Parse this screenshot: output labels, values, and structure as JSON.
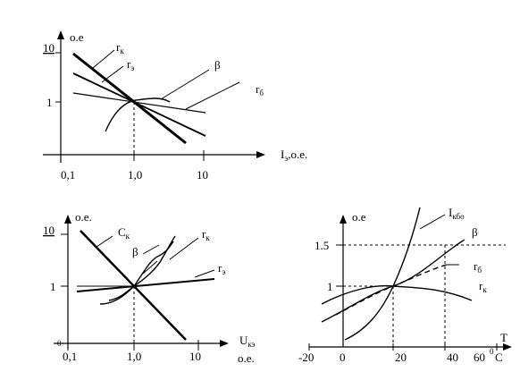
{
  "figure_top": {
    "y_axis_label": "o.e",
    "x_axis_label": "I",
    "x_axis_label_sub": "э",
    "x_axis_label_suffix": ",o.e.",
    "y_ticks": [
      "10",
      "1"
    ],
    "x_ticks": [
      "0,1",
      "1,0",
      "10"
    ],
    "curve_labels": {
      "rk_main": "r",
      "rk_sub": "к",
      "re_main": "r",
      "re_sub": "э",
      "beta": "β",
      "rb_main": "r",
      "rb_sub": "б"
    }
  },
  "figure_bottom_left": {
    "y_axis_label": "o.e.",
    "x_axis_label": "U",
    "x_axis_label_sub": "кэ",
    "x_axis_units": "o.e.",
    "y_ticks": [
      "10",
      "1",
      "0"
    ],
    "x_ticks": [
      "0,1",
      "1,0",
      "10"
    ],
    "curve_labels": {
      "ck_main": "C",
      "ck_sub": "к",
      "beta": "β",
      "rk_main": "r",
      "rk_sub": "к",
      "re_main": "r",
      "re_sub": "э"
    }
  },
  "figure_bottom_right": {
    "y_axis_label": "o.e",
    "x_axis_label": "T",
    "x_axis_units": "C",
    "x_axis_degree": "0",
    "y_ticks": [
      "1.5",
      "1"
    ],
    "x_ticks": [
      "-20",
      "0",
      "20",
      "40",
      "60"
    ],
    "curve_labels": {
      "ikbo_main": "I",
      "ikbo_sub": "кбо",
      "beta": "β",
      "rb_main": "r",
      "rb_sub": "б",
      "rk_main": "r",
      "rk_sub": "к"
    }
  }
}
